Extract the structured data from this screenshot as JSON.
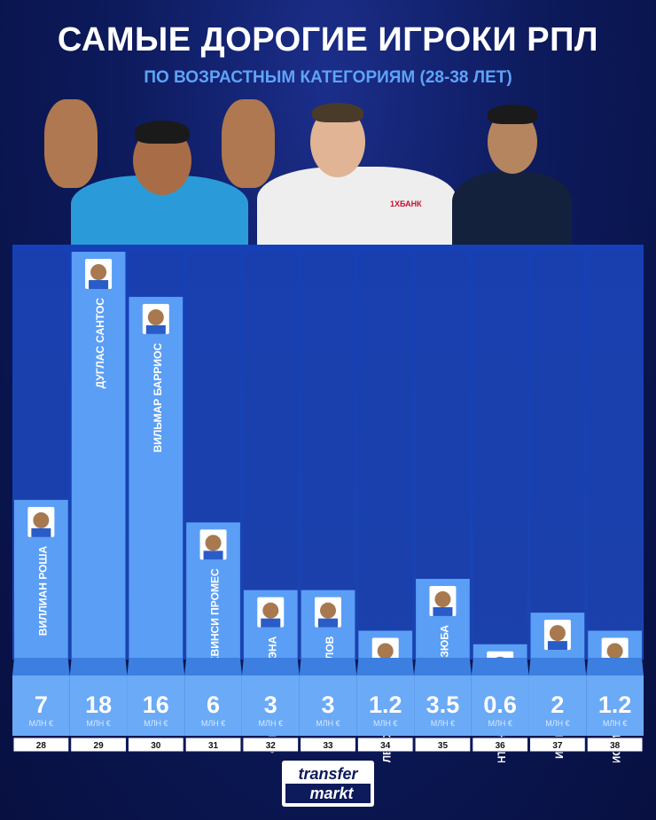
{
  "header": {
    "title": "САМЫЕ ДОРОГИЕ ИГРОКИ РПЛ",
    "subtitle": "ПО ВОЗРАСТНЫМ КАТЕГОРИЯМ (28-38 ЛЕТ)"
  },
  "colors": {
    "bar": "#5b9ef5",
    "bar_dark": "#3d7fe0",
    "value_box": "#6aaaf7",
    "value_text": "#ffffff",
    "unit_text": "#dbe9ff",
    "age_box": "#ffffff",
    "age_text": "#111111",
    "label_text": "#ffffff"
  },
  "chart_data": {
    "type": "bar",
    "categories": [
      "28",
      "29",
      "30",
      "31",
      "32",
      "33",
      "34",
      "35",
      "36",
      "37",
      "38"
    ],
    "players": [
      "ВИЛЛИАН РОША",
      "ДУГЛАС САНТОС",
      "ВИЛЬМАР БАРРИОС",
      "КВИНСИ ПРОМЕС",
      "ФАБИАН БАЛЬБУЭНА",
      "ФЁДОР СМОЛОВ",
      "АЛЕКСЕЙ ИОНОВ",
      "АРТЁМ ДЗЮБА",
      "АНТОН ШУНИН",
      "ИГОРЬ АКИНФЕЕВ",
      "КРИСТИАН НОБОА"
    ],
    "values": [
      7,
      18,
      16,
      6,
      3,
      3,
      1.2,
      3.5,
      0.6,
      2,
      1.2
    ],
    "value_labels": [
      "7",
      "18",
      "16",
      "6",
      "3",
      "3",
      "1.2",
      "3.5",
      "0.6",
      "2",
      "1.2"
    ],
    "unit": "МЛН €",
    "ylim": [
      0,
      18
    ]
  },
  "logo": {
    "line1": "transfer",
    "line2": "markt"
  }
}
